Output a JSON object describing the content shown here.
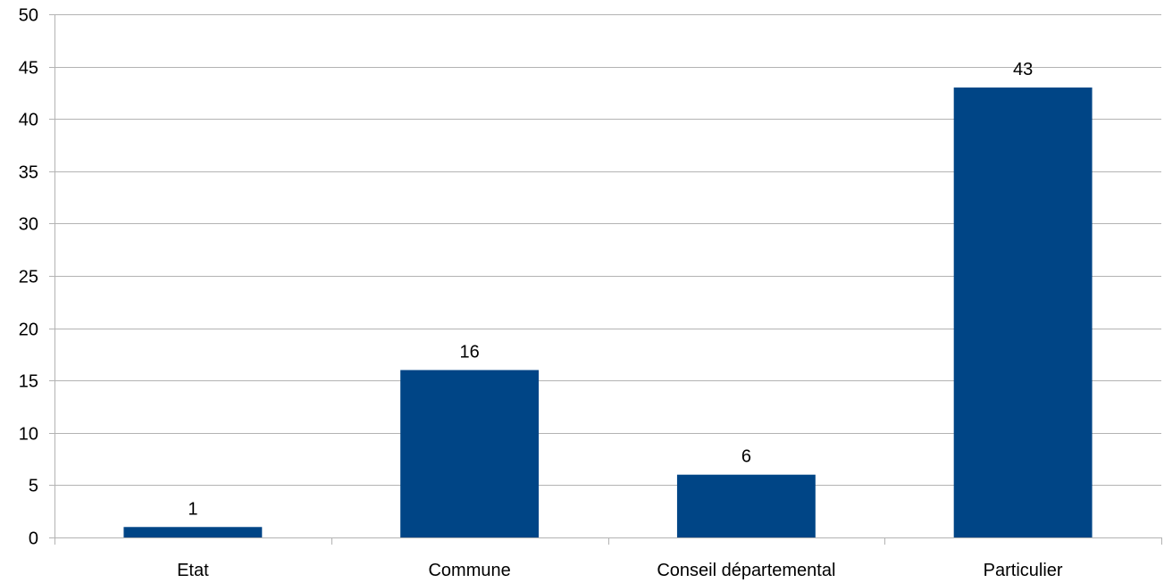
{
  "chart_data": {
    "type": "bar",
    "title": "",
    "xlabel": "",
    "ylabel": "",
    "categories": [
      "Etat",
      "Commune",
      "Conseil départemental",
      "Particulier"
    ],
    "values": [
      1,
      16,
      6,
      43
    ],
    "ylim": [
      0,
      50
    ],
    "ytick_step": 5,
    "grid": true,
    "legend": "none",
    "data_labels": true,
    "bar_color": "#004586"
  }
}
